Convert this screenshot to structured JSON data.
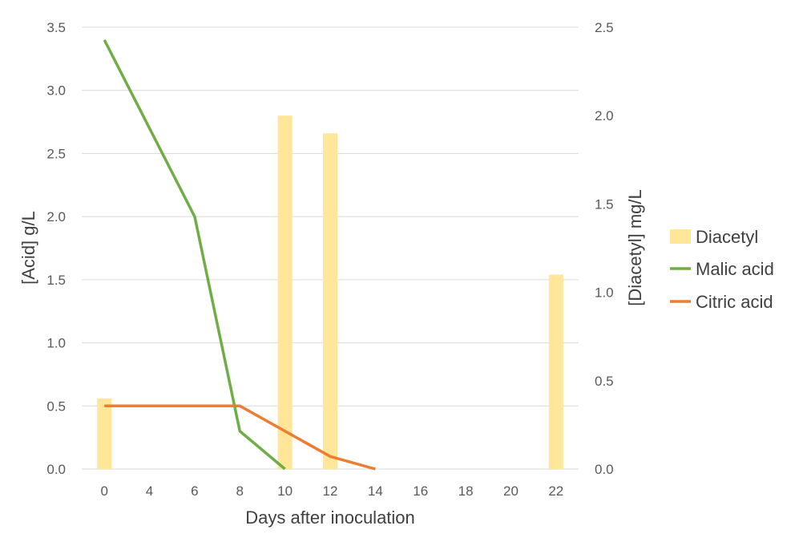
{
  "chart_data": {
    "type": "bar+line",
    "x": [
      0,
      4,
      6,
      8,
      10,
      12,
      14,
      16,
      18,
      20,
      22
    ],
    "x_tick_labels": [
      "0",
      "4",
      "6",
      "8",
      "10",
      "12",
      "14",
      "16",
      "18",
      "20",
      "22"
    ],
    "xlabel": "Days after inoculation",
    "ylabel_left": "[Acid] g/L",
    "ylabel_right": "[Diacetyl] mg/L",
    "ylim_left": [
      0,
      3.5
    ],
    "ylim_right": [
      0,
      2.5
    ],
    "y_ticks_left": [
      "0.0",
      "0.5",
      "1.0",
      "1.5",
      "2.0",
      "2.5",
      "3.0",
      "3.5"
    ],
    "y_ticks_right": [
      "0.0",
      "0.5",
      "1.0",
      "1.5",
      "2.0",
      "2.5"
    ],
    "grid": "horizontal",
    "legend_position": "right",
    "series": [
      {
        "name": "Diacetyl",
        "kind": "bar",
        "axis": "right",
        "color": "#FFE699",
        "points": [
          {
            "x": 0,
            "y": 0.4
          },
          {
            "x": 10,
            "y": 2.0
          },
          {
            "x": 12,
            "y": 1.9
          },
          {
            "x": 22,
            "y": 1.1
          }
        ]
      },
      {
        "name": "Malic acid",
        "kind": "line",
        "axis": "left",
        "color": "#70AD47",
        "points": [
          {
            "x": 0,
            "y": 3.4
          },
          {
            "x": 6,
            "y": 2.0
          },
          {
            "x": 8,
            "y": 0.3
          },
          {
            "x": 10,
            "y": 0.0
          }
        ]
      },
      {
        "name": "Citric acid",
        "kind": "line",
        "axis": "left",
        "color": "#ED7D31",
        "points": [
          {
            "x": 0,
            "y": 0.5
          },
          {
            "x": 8,
            "y": 0.5
          },
          {
            "x": 10,
            "y": 0.3
          },
          {
            "x": 12,
            "y": 0.1
          },
          {
            "x": 14,
            "y": 0.0
          }
        ]
      }
    ]
  }
}
